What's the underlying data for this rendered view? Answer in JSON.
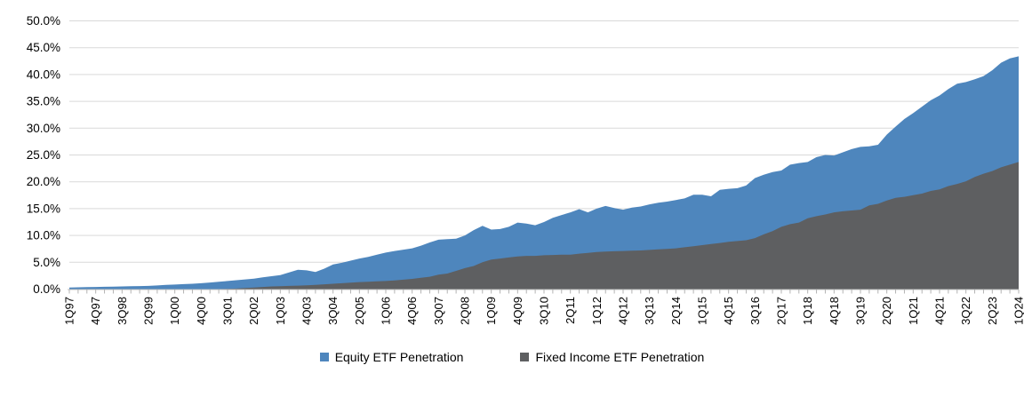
{
  "chart_data": {
    "type": "area",
    "title": "",
    "xlabel": "",
    "ylabel": "",
    "overlapping": true,
    "grid": true,
    "legend_position": "bottom",
    "y_min": 0,
    "y_max": 50,
    "y_tick_step": 5,
    "y_tick_labels": [
      "0.0%",
      "5.0%",
      "10.0%",
      "15.0%",
      "20.0%",
      "25.0%",
      "30.0%",
      "35.0%",
      "40.0%",
      "45.0%",
      "50.0%"
    ],
    "x_tick_labels": [
      "1Q97",
      "4Q97",
      "3Q98",
      "2Q99",
      "1Q00",
      "4Q00",
      "3Q01",
      "2Q02",
      "1Q03",
      "4Q03",
      "3Q04",
      "2Q05",
      "1Q06",
      "4Q06",
      "3Q07",
      "2Q08",
      "1Q09",
      "4Q09",
      "3Q10",
      "2Q11",
      "1Q12",
      "4Q12",
      "3Q13",
      "2Q14",
      "1Q15",
      "4Q15",
      "3Q16",
      "2Q17",
      "1Q18",
      "4Q18",
      "3Q19",
      "2Q20",
      "1Q21",
      "4Q21",
      "3Q22",
      "2Q23",
      "1Q24"
    ],
    "x_ticks_every_n_quarters": 3,
    "x_range": "1Q97 to 1Q24, quarterly (109 points)",
    "colors": {
      "equity_fill": "#4e86bd",
      "fixed_income_fill": "#5e5f61",
      "gridline": "#d9d9d9",
      "axis_line": "#bfbfbf",
      "tick_mark": "#b3b3b3",
      "label_text": "#000000"
    },
    "series": [
      {
        "name": "Equity ETF Penetration",
        "color": "#4e86bd",
        "values": [
          0.3,
          0.33,
          0.37,
          0.4,
          0.43,
          0.47,
          0.5,
          0.53,
          0.57,
          0.6,
          0.68,
          0.77,
          0.85,
          0.93,
          1.0,
          1.1,
          1.23,
          1.37,
          1.5,
          1.65,
          1.8,
          1.95,
          2.2,
          2.4,
          2.6,
          3.1,
          3.6,
          3.5,
          3.2,
          3.8,
          4.6,
          4.9,
          5.3,
          5.7,
          6.0,
          6.4,
          6.8,
          7.1,
          7.35,
          7.6,
          8.1,
          8.7,
          9.2,
          9.3,
          9.4,
          10.0,
          11.0,
          11.8,
          11.1,
          11.2,
          11.6,
          12.4,
          12.2,
          11.9,
          12.5,
          13.3,
          13.8,
          14.3,
          14.9,
          14.3,
          15.0,
          15.5,
          15.1,
          14.8,
          15.2,
          15.4,
          15.8,
          16.1,
          16.3,
          16.6,
          16.9,
          17.6,
          17.6,
          17.3,
          18.5,
          18.7,
          18.8,
          19.3,
          20.7,
          21.3,
          21.8,
          22.1,
          23.2,
          23.5,
          23.7,
          24.6,
          25.0,
          24.9,
          25.5,
          26.1,
          26.5,
          26.6,
          26.9,
          28.8,
          30.3,
          31.7,
          32.8,
          34.0,
          35.2,
          36.1,
          37.3,
          38.3,
          38.6,
          39.1,
          39.7,
          40.8,
          42.2,
          43.0,
          43.4
        ]
      },
      {
        "name": "Fixed Income ETF Penetration",
        "color": "#5e5f61",
        "values": [
          0,
          0,
          0,
          0,
          0,
          0,
          0,
          0,
          0,
          0,
          0,
          0,
          0,
          0,
          0,
          0,
          0,
          0,
          0.05,
          0.1,
          0.2,
          0.3,
          0.4,
          0.5,
          0.55,
          0.6,
          0.65,
          0.7,
          0.8,
          0.9,
          1.0,
          1.1,
          1.2,
          1.3,
          1.35,
          1.45,
          1.5,
          1.6,
          1.75,
          1.9,
          2.1,
          2.3,
          2.7,
          2.9,
          3.4,
          3.9,
          4.3,
          5.0,
          5.5,
          5.7,
          5.9,
          6.1,
          6.2,
          6.2,
          6.3,
          6.35,
          6.4,
          6.4,
          6.6,
          6.75,
          6.9,
          7.0,
          7.05,
          7.1,
          7.15,
          7.2,
          7.3,
          7.4,
          7.5,
          7.6,
          7.8,
          8.0,
          8.2,
          8.4,
          8.6,
          8.8,
          8.95,
          9.1,
          9.5,
          10.2,
          10.8,
          11.6,
          12.1,
          12.4,
          13.2,
          13.6,
          13.9,
          14.3,
          14.5,
          14.65,
          14.8,
          15.6,
          15.9,
          16.5,
          17.0,
          17.2,
          17.5,
          17.8,
          18.3,
          18.6,
          19.2,
          19.6,
          20.1,
          20.9,
          21.5,
          22.0,
          22.7,
          23.2,
          23.7
        ]
      }
    ],
    "end_values": {
      "equity": "43.4%",
      "fixed_income": "23.7%"
    }
  },
  "legend": {
    "equity_label": "Equity ETF Penetration",
    "fixed_income_label": "Fixed Income ETF Penetration"
  }
}
